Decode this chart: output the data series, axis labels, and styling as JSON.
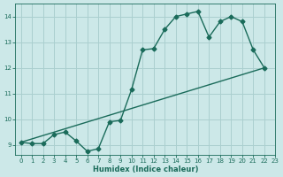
{
  "xlabel": "Humidex (Indice chaleur)",
  "background_color": "#cce8e8",
  "grid_color": "#aacfcf",
  "line_color": "#1a6b5a",
  "xlim": [
    -0.5,
    23
  ],
  "ylim": [
    8.6,
    14.5
  ],
  "yticks": [
    9,
    10,
    11,
    12,
    13,
    14
  ],
  "xticks": [
    0,
    1,
    2,
    3,
    4,
    5,
    6,
    7,
    8,
    9,
    10,
    11,
    12,
    13,
    14,
    15,
    16,
    17,
    18,
    19,
    20,
    21,
    22,
    23
  ],
  "curve1_x": [
    0,
    1,
    2,
    3,
    4,
    5,
    6,
    7,
    8,
    9,
    10,
    11,
    12,
    13,
    14,
    15,
    16,
    17,
    18,
    19,
    20,
    21,
    22
  ],
  "curve1_y": [
    9.1,
    9.05,
    9.05,
    9.4,
    9.5,
    9.15,
    8.75,
    8.85,
    9.9,
    9.95,
    11.15,
    12.7,
    12.75,
    13.5,
    14.0,
    14.1,
    14.2,
    13.2,
    13.8,
    14.0,
    13.8,
    12.7,
    12.0
  ],
  "curve2_x": [
    0,
    22
  ],
  "curve2_y": [
    9.1,
    12.0
  ]
}
